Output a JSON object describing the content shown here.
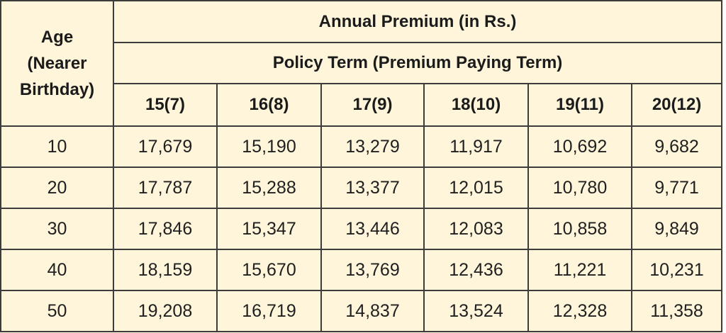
{
  "table": {
    "row_header": {
      "line1": "Age",
      "line2": "(Nearer",
      "line3": "Birthday)"
    },
    "title": "Annual Premium (in Rs.)",
    "subtitle": "Policy Term (Premium Paying Term)",
    "columns": [
      "15(7)",
      "16(8)",
      "17(9)",
      "18(10)",
      "19(11)",
      "20(12)"
    ],
    "rows": [
      {
        "age": "10",
        "values": [
          "17,679",
          "15,190",
          "13,279",
          "11,917",
          "10,692",
          "9,682"
        ]
      },
      {
        "age": "20",
        "values": [
          "17,787",
          "15,288",
          "13,377",
          "12,015",
          "10,780",
          "9,771"
        ]
      },
      {
        "age": "30",
        "values": [
          "17,846",
          "15,347",
          "13,446",
          "12,083",
          "10,858",
          "9,849"
        ]
      },
      {
        "age": "40",
        "values": [
          "18,159",
          "15,670",
          "13,769",
          "12,436",
          "11,221",
          "10,231"
        ]
      },
      {
        "age": "50",
        "values": [
          "19,208",
          "16,719",
          "14,837",
          "13,524",
          "12,328",
          "11,358"
        ]
      }
    ]
  },
  "colors": {
    "cell_background": "#fef5da",
    "border": "#3c3c3a",
    "text": "#1e1e1e"
  }
}
